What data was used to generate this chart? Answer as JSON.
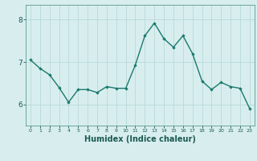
{
  "x": [
    0,
    1,
    2,
    3,
    4,
    5,
    6,
    7,
    8,
    9,
    10,
    11,
    12,
    13,
    14,
    15,
    16,
    17,
    18,
    19,
    20,
    21,
    22,
    23
  ],
  "y": [
    7.05,
    6.85,
    6.7,
    6.4,
    6.05,
    6.35,
    6.35,
    6.28,
    6.42,
    6.38,
    6.38,
    6.93,
    7.62,
    7.92,
    7.55,
    7.35,
    7.62,
    7.2,
    6.55,
    6.35,
    6.52,
    6.42,
    6.38,
    5.9
  ],
  "line_color": "#1a7a6e",
  "marker": "D",
  "marker_size": 1.8,
  "bg_color": "#d8eeee",
  "grid_color": "#b8d8d8",
  "axis_color": "#5a9a8e",
  "tick_color": "#1a5a50",
  "xlabel": "Humidex (Indice chaleur)",
  "xlabel_fontsize": 7,
  "yticks": [
    6,
    7,
    8
  ],
  "ylim": [
    5.5,
    8.35
  ],
  "xlim": [
    -0.5,
    23.5
  ],
  "line_width": 1.0
}
